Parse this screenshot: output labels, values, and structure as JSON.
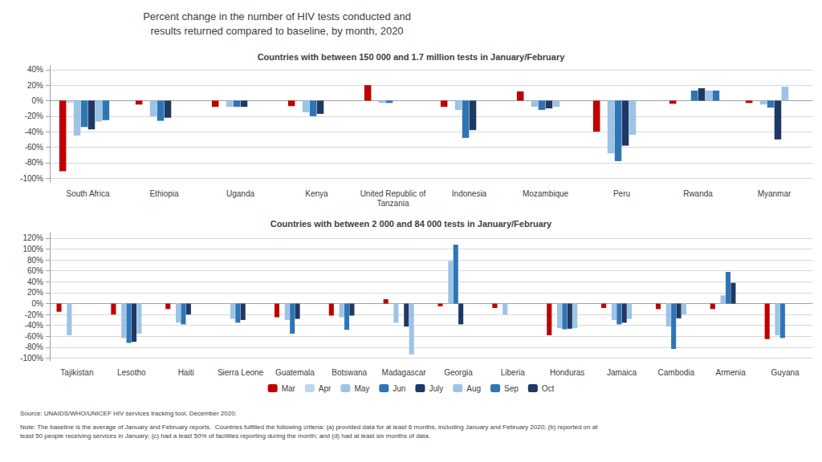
{
  "title": "Percent change in the number of HIV tests conducted and\nresults returned compared to baseline, by month, 2020",
  "annotations": [
    "Source: UNAIDS/WHO/UNICEF HIV services tracking tool, December 2020.",
    "Note: The baseline is the average of January and February reports.  Countries fulfilled the following criteria: (a) provided data for at least 6 months, including January and February 2020; (b) reported on at\nleast 50 people receiving services in January; (c) had a least 50% of facilities reporting during the month; and (d) had at least six months of data."
  ],
  "legend": "bottom",
  "chart_data": [
    {
      "type": "bar",
      "subtitle": "Countries with between 150 000 and 1.7 million tests in January/February",
      "categories": [
        "South Africa",
        "Ethiopia",
        "Uganda",
        "Kenya",
        "United Republic of\nTanzania",
        "Indonesia",
        "Mozambique",
        "Peru",
        "Rwanda",
        "Myanmar"
      ],
      "series": [
        {
          "name": "Mar",
          "color": "#c00000",
          "values": [
            -91,
            -5,
            -8,
            -7,
            20,
            -8,
            12,
            -40,
            -4,
            -3
          ]
        },
        {
          "name": "Apr",
          "color": "#bdd7ee",
          "values": [
            -3,
            null,
            null,
            null,
            null,
            null,
            null,
            null,
            null,
            null
          ]
        },
        {
          "name": "May",
          "color": "#9dc3e6",
          "values": [
            -45,
            -20,
            -8,
            -15,
            -3,
            -12,
            -8,
            -68,
            null,
            -5
          ]
        },
        {
          "name": "Jun",
          "color": "#2e75b6",
          "values": [
            -34,
            -26,
            -8,
            -20,
            -3,
            -48,
            -12,
            -78,
            13,
            -9
          ]
        },
        {
          "name": "July",
          "color": "#1f3864",
          "values": [
            -37,
            -22,
            -8,
            -17,
            null,
            -38,
            -10,
            -58,
            16,
            -50
          ]
        },
        {
          "name": "Aug",
          "color": "#9dc3e6",
          "values": [
            -27,
            null,
            null,
            null,
            null,
            null,
            -8,
            -44,
            13,
            18
          ]
        },
        {
          "name": "Sep",
          "color": "#2e75b6",
          "values": [
            -25,
            null,
            null,
            null,
            null,
            null,
            null,
            null,
            13,
            null
          ]
        },
        {
          "name": "Oct",
          "color": "#1f3864",
          "values": [
            null,
            null,
            null,
            null,
            null,
            null,
            null,
            null,
            null,
            null
          ]
        }
      ],
      "ylim": [
        -105,
        45
      ],
      "yticks": [
        {
          "value": -100,
          "label": "-100%"
        },
        {
          "value": -80,
          "label": "-80%"
        },
        {
          "value": -60,
          "label": "-60%"
        },
        {
          "value": -40,
          "label": "-40%"
        },
        {
          "value": -20,
          "label": "-20%"
        },
        {
          "value": 0,
          "label": "0%"
        },
        {
          "value": 20,
          "label": "20%"
        },
        {
          "value": 40,
          "label": "40%"
        }
      ],
      "grid": true
    },
    {
      "type": "bar",
      "subtitle": "Countries with between 2 000 and 84 000 tests in January/February",
      "categories": [
        "Tajikistan",
        "Lesotho",
        "Haiti",
        "Sierra Leone",
        "Guatemala",
        "Botswana",
        "Madagascar",
        "Georgia",
        "Liberia",
        "Honduras",
        "Jamaica",
        "Cambodia",
        "Armenia",
        "Guyana"
      ],
      "series": [
        {
          "name": "Mar",
          "color": "#c00000",
          "values": [
            -15,
            -20,
            -10,
            0,
            -25,
            -22,
            8,
            -5,
            -8,
            -58,
            -8,
            -10,
            -10,
            -65
          ]
        },
        {
          "name": "Apr",
          "color": "#bdd7ee",
          "values": [
            null,
            null,
            null,
            null,
            null,
            null,
            null,
            null,
            null,
            null,
            null,
            null,
            null,
            null
          ]
        },
        {
          "name": "May",
          "color": "#9dc3e6",
          "values": [
            -58,
            -63,
            -35,
            -28,
            -30,
            -25,
            -35,
            78,
            -20,
            -45,
            -30,
            -42,
            15,
            -58
          ]
        },
        {
          "name": "Jun",
          "color": "#2e75b6",
          "values": [
            null,
            -72,
            -38,
            -35,
            -55,
            -48,
            null,
            108,
            null,
            -47,
            -38,
            -83,
            58,
            -63
          ]
        },
        {
          "name": "July",
          "color": "#1f3864",
          "values": [
            null,
            -70,
            -20,
            -30,
            -28,
            -22,
            -42,
            -38,
            null,
            -46,
            -35,
            -27,
            38,
            null
          ]
        },
        {
          "name": "Aug",
          "color": "#9dc3e6",
          "values": [
            null,
            -55,
            null,
            null,
            null,
            null,
            -93,
            null,
            null,
            -45,
            -28,
            -20,
            null,
            null
          ]
        },
        {
          "name": "Sep",
          "color": "#2e75b6",
          "values": [
            null,
            null,
            null,
            null,
            null,
            null,
            null,
            null,
            null,
            null,
            null,
            null,
            null,
            null
          ]
        },
        {
          "name": "Oct",
          "color": "#1f3864",
          "values": [
            null,
            null,
            null,
            null,
            null,
            null,
            null,
            null,
            null,
            null,
            null,
            null,
            null,
            null
          ]
        }
      ],
      "ylim": [
        -105,
        130
      ],
      "yticks": [
        {
          "value": -100,
          "label": "-100%"
        },
        {
          "value": -80,
          "label": "-80%"
        },
        {
          "value": -60,
          "label": "-60%"
        },
        {
          "value": -40,
          "label": "-40%"
        },
        {
          "value": -20,
          "label": "-20%"
        },
        {
          "value": 0,
          "label": "0%"
        },
        {
          "value": 20,
          "label": "20%"
        },
        {
          "value": 40,
          "label": "40%"
        },
        {
          "value": 60,
          "label": "60%"
        },
        {
          "value": 80,
          "label": "80%"
        },
        {
          "value": 100,
          "label": "100%"
        },
        {
          "value": 120,
          "label": "120%"
        }
      ],
      "grid": true
    }
  ]
}
